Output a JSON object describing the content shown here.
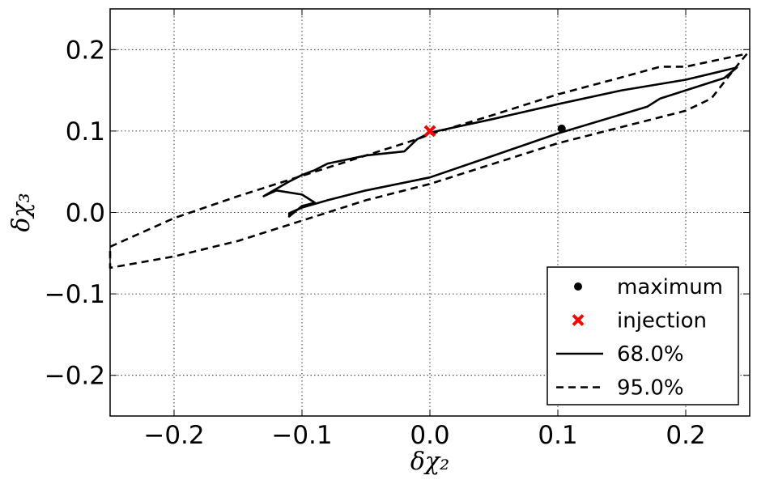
{
  "chart_data": {
    "type": "scatter",
    "title": "",
    "xlabel": "δχ₂",
    "ylabel": "δχ₃",
    "xlim": [
      -0.25,
      0.25
    ],
    "ylim": [
      -0.25,
      0.25
    ],
    "x_ticks": [
      -0.2,
      -0.1,
      0.0,
      0.1,
      0.2
    ],
    "y_ticks": [
      -0.2,
      -0.1,
      0.0,
      0.1,
      0.2
    ],
    "x_tick_labels": [
      "−0.2",
      "−0.1",
      "0.0",
      "0.1",
      "0.2"
    ],
    "y_tick_labels": [
      "−0.2",
      "−0.1",
      "0.0",
      "0.1",
      "0.2"
    ],
    "grid": true,
    "legend_position": "bottom-right",
    "points": [
      {
        "name": "maximum",
        "x": 0.103,
        "y": 0.103,
        "marker": "circle",
        "color": "#000000"
      },
      {
        "name": "injection",
        "x": 0.0,
        "y": 0.1,
        "marker": "x",
        "color": "#ff0000"
      }
    ],
    "contours": [
      {
        "name": "68.0%",
        "style": "solid",
        "color": "#000000",
        "x": [
          -0.13,
          -0.11,
          -0.1,
          -0.09,
          -0.08,
          -0.05,
          -0.02,
          -0.01,
          0.0,
          0.05,
          0.1,
          0.15,
          0.2,
          0.24,
          0.23,
          0.18,
          0.17,
          0.1,
          0.05,
          0.0,
          -0.05,
          -0.08,
          -0.1,
          -0.11,
          -0.11,
          -0.1,
          -0.09,
          -0.1,
          -0.12,
          -0.13
        ],
        "y": [
          0.02,
          0.038,
          0.046,
          0.052,
          0.06,
          0.07,
          0.075,
          0.09,
          0.098,
          0.115,
          0.133,
          0.15,
          0.163,
          0.178,
          0.165,
          0.14,
          0.13,
          0.097,
          0.07,
          0.043,
          0.027,
          0.015,
          0.006,
          -0.001,
          -0.005,
          0.008,
          0.012,
          0.022,
          0.027,
          0.02
        ]
      },
      {
        "name": "95.0%",
        "style": "dashed",
        "color": "#000000",
        "x": [
          -0.25,
          -0.2,
          -0.15,
          -0.1,
          -0.05,
          -0.01,
          0.0,
          0.05,
          0.1,
          0.15,
          0.18,
          0.2,
          0.248,
          0.24,
          0.225,
          0.22,
          0.2,
          0.15,
          0.1,
          0.05,
          0.0,
          -0.05,
          -0.1,
          -0.15,
          -0.2,
          -0.25
        ],
        "y": [
          -0.042,
          -0.007,
          0.02,
          0.045,
          0.07,
          0.09,
          0.096,
          0.12,
          0.145,
          0.166,
          0.179,
          0.179,
          0.195,
          0.18,
          0.15,
          0.14,
          0.125,
          0.105,
          0.085,
          0.06,
          0.035,
          0.015,
          -0.01,
          -0.035,
          -0.054,
          -0.068
        ]
      }
    ],
    "legend": [
      {
        "label": "maximum",
        "marker": "circle"
      },
      {
        "label": "injection",
        "marker": "x"
      },
      {
        "label": "68.0%",
        "marker": "solid-line"
      },
      {
        "label": "95.0%",
        "marker": "dashed-line"
      }
    ]
  }
}
